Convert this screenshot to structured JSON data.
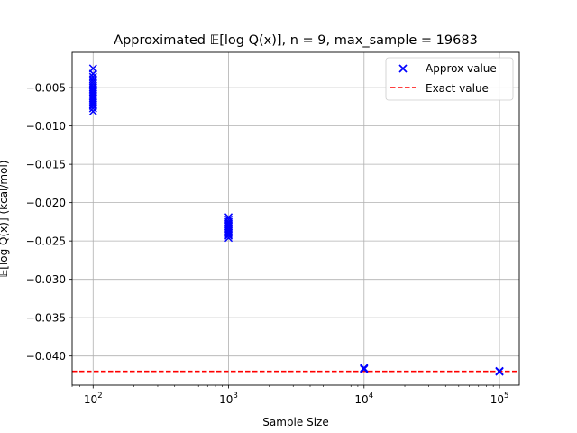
{
  "chart_data": {
    "type": "scatter",
    "title": "Approximated 𝔼[log Q(x)], n = 9, max_sample = 19683",
    "xlabel": "Sample Size",
    "ylabel": "𝔼[log Q(x)] (kcal/mol)",
    "xscale": "log",
    "xlim": [
      70,
      140000
    ],
    "ylim": [
      -0.0438,
      -0.0004
    ],
    "x_ticks": [
      {
        "value": 100,
        "mantissa": "10",
        "exponent": "2"
      },
      {
        "value": 1000,
        "mantissa": "10",
        "exponent": "3"
      },
      {
        "value": 10000,
        "mantissa": "10",
        "exponent": "4"
      },
      {
        "value": 100000,
        "mantissa": "10",
        "exponent": "5"
      }
    ],
    "y_ticks": [
      {
        "value": -0.005,
        "label": "−0.005"
      },
      {
        "value": -0.01,
        "label": "−0.010"
      },
      {
        "value": -0.015,
        "label": "−0.015"
      },
      {
        "value": -0.02,
        "label": "−0.020"
      },
      {
        "value": -0.025,
        "label": "−0.025"
      },
      {
        "value": -0.03,
        "label": "−0.030"
      },
      {
        "value": -0.035,
        "label": "−0.035"
      },
      {
        "value": -0.04,
        "label": "−0.040"
      }
    ],
    "grid": true,
    "legend": "top-right",
    "series": [
      {
        "name": "Approx value",
        "kind": "scatter",
        "marker": "x",
        "color": "#0000ff",
        "points": [
          {
            "sample_size": 100,
            "values": [
              -0.0025,
              -0.0032,
              -0.0036,
              -0.0039,
              -0.0042,
              -0.0045,
              -0.0048,
              -0.005,
              -0.0052,
              -0.0054,
              -0.0056,
              -0.0058,
              -0.006,
              -0.0062,
              -0.0064,
              -0.0066,
              -0.0068,
              -0.007,
              -0.0072,
              -0.0074,
              -0.0077,
              -0.0081
            ]
          },
          {
            "sample_size": 1000,
            "values": [
              -0.0219,
              -0.0222,
              -0.0225,
              -0.0227,
              -0.0229,
              -0.0231,
              -0.0233,
              -0.0235,
              -0.0237,
              -0.0239,
              -0.0241,
              -0.0243,
              -0.0246
            ]
          },
          {
            "sample_size": 10000,
            "values": [
              -0.04155,
              -0.04162,
              -0.04168,
              -0.04172
            ]
          },
          {
            "sample_size": 100000,
            "values": [
              -0.04195,
              -0.042,
              -0.04205
            ]
          }
        ]
      },
      {
        "name": "Exact value",
        "kind": "hline",
        "style": "dashed",
        "color": "#ff0000",
        "value": -0.042
      }
    ]
  }
}
